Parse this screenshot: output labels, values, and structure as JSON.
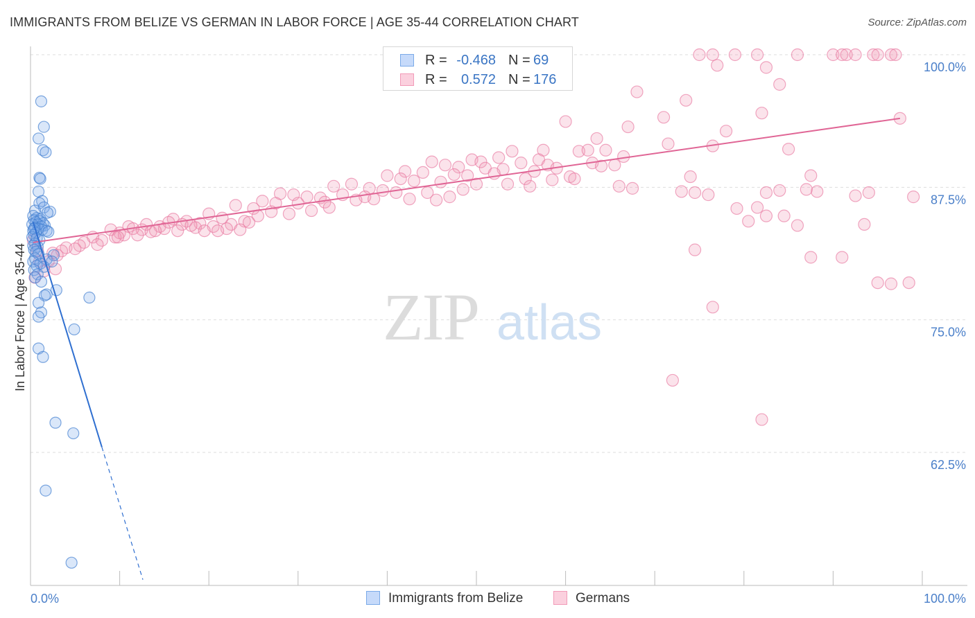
{
  "title": "IMMIGRANTS FROM BELIZE VS GERMAN IN LABOR FORCE | AGE 35-44 CORRELATION CHART",
  "source": "Source: ZipAtlas.com",
  "watermark": {
    "zip": "ZIP",
    "atlas": "atlas"
  },
  "colors": {
    "blue": "#7aaae8",
    "blue_line": "#2f6fd0",
    "pink": "#f29ab8",
    "pink_line": "#e06595",
    "tick_label": "#4a7fc9"
  },
  "legend": {
    "rows": [
      {
        "r_label": "R =",
        "r_value": "-0.468",
        "n_label": "N =",
        "n_value": "69"
      },
      {
        "r_label": "R =",
        "r_value": "0.572",
        "n_label": "N =",
        "n_value": "176"
      }
    ]
  },
  "bottom_legend": {
    "series1": "Immigrants from Belize",
    "series2": "Germans"
  },
  "chart_data": {
    "type": "scatter",
    "ylabel": "In Labor Force | Age 35-44",
    "xlim": [
      0,
      100
    ],
    "ylim": [
      50.5,
      101.5
    ],
    "x_tick_labels": [
      "0.0%",
      "100.0%"
    ],
    "y_ticks": [
      62.5,
      75.0,
      87.5,
      100.0
    ],
    "y_tick_labels": [
      "62.5%",
      "75.0%",
      "87.5%",
      "100.0%"
    ],
    "grid": true,
    "series": [
      {
        "name": "Immigrants from Belize",
        "color": "#7aaae8",
        "trend": {
          "x0": 0.3,
          "y0": 84.2,
          "x1": 8.0,
          "y1": 63.0,
          "dash_to_x": 12.6,
          "dash_to_y": 50.5
        },
        "points": [
          [
            1.2,
            95.6
          ],
          [
            1.5,
            93.2
          ],
          [
            0.9,
            92.1
          ],
          [
            1.4,
            91.0
          ],
          [
            1.7,
            90.8
          ],
          [
            1.0,
            88.4
          ],
          [
            1.1,
            88.3
          ],
          [
            0.9,
            87.1
          ],
          [
            1.3,
            86.2
          ],
          [
            1.0,
            86.0
          ],
          [
            1.5,
            85.6
          ],
          [
            0.5,
            85.3
          ],
          [
            2.2,
            85.2
          ],
          [
            1.9,
            85.1
          ],
          [
            0.3,
            84.8
          ],
          [
            0.7,
            84.6
          ],
          [
            1.1,
            84.5
          ],
          [
            0.4,
            84.4
          ],
          [
            1.0,
            84.3
          ],
          [
            0.6,
            84.2
          ],
          [
            1.4,
            84.1
          ],
          [
            0.8,
            84.0
          ],
          [
            0.2,
            84.0
          ],
          [
            1.6,
            83.9
          ],
          [
            1.2,
            83.8
          ],
          [
            0.5,
            83.7
          ],
          [
            0.9,
            83.6
          ],
          [
            1.3,
            83.5
          ],
          [
            0.3,
            83.4
          ],
          [
            1.8,
            83.4
          ],
          [
            2.0,
            83.3
          ],
          [
            0.6,
            83.2
          ],
          [
            0.4,
            83.0
          ],
          [
            0.2,
            82.8
          ],
          [
            0.7,
            82.7
          ],
          [
            1.0,
            82.5
          ],
          [
            0.5,
            82.2
          ],
          [
            0.3,
            82.0
          ],
          [
            0.8,
            81.9
          ],
          [
            0.4,
            81.6
          ],
          [
            0.6,
            81.4
          ],
          [
            0.9,
            81.2
          ],
          [
            2.6,
            81.1
          ],
          [
            0.5,
            80.8
          ],
          [
            1.8,
            80.7
          ],
          [
            0.3,
            80.5
          ],
          [
            2.4,
            80.5
          ],
          [
            1.1,
            80.3
          ],
          [
            0.7,
            80.1
          ],
          [
            1.5,
            80.0
          ],
          [
            0.4,
            79.7
          ],
          [
            0.8,
            79.3
          ],
          [
            0.5,
            79.0
          ],
          [
            1.2,
            78.6
          ],
          [
            2.9,
            77.8
          ],
          [
            1.8,
            77.4
          ],
          [
            1.6,
            77.3
          ],
          [
            6.6,
            77.1
          ],
          [
            0.9,
            76.6
          ],
          [
            1.2,
            75.7
          ],
          [
            0.9,
            75.3
          ],
          [
            4.9,
            74.1
          ],
          [
            0.9,
            72.3
          ],
          [
            1.4,
            71.5
          ],
          [
            2.8,
            65.3
          ],
          [
            4.8,
            64.3
          ],
          [
            1.7,
            58.9
          ],
          [
            4.6,
            52.1
          ],
          [
            0.4,
            83.6
          ]
        ]
      },
      {
        "name": "Germans",
        "color": "#f29ab8",
        "trend": {
          "x0": 0.3,
          "y0": 82.3,
          "x1": 97.5,
          "y1": 94.0
        },
        "points": [
          [
            75.0,
            100.0
          ],
          [
            76.5,
            100.0
          ],
          [
            79.0,
            100.0
          ],
          [
            81.5,
            100.0
          ],
          [
            86.0,
            100.0
          ],
          [
            90.0,
            100.0
          ],
          [
            91.0,
            100.0
          ],
          [
            91.5,
            100.0
          ],
          [
            92.5,
            100.0
          ],
          [
            94.5,
            100.0
          ],
          [
            95.0,
            100.0
          ],
          [
            96.5,
            100.0
          ],
          [
            97.0,
            100.0
          ],
          [
            77.0,
            99.0
          ],
          [
            82.5,
            98.8
          ],
          [
            84.0,
            97.2
          ],
          [
            68.0,
            96.5
          ],
          [
            73.5,
            95.7
          ],
          [
            82.0,
            94.5
          ],
          [
            71.0,
            94.1
          ],
          [
            60.0,
            93.7
          ],
          [
            67.0,
            93.2
          ],
          [
            78.0,
            92.8
          ],
          [
            97.5,
            94.0
          ],
          [
            63.5,
            92.1
          ],
          [
            71.5,
            91.6
          ],
          [
            76.5,
            91.4
          ],
          [
            85.0,
            91.1
          ],
          [
            57.5,
            91.0
          ],
          [
            61.5,
            90.9
          ],
          [
            62.5,
            91.0
          ],
          [
            64.5,
            91.0
          ],
          [
            54.0,
            90.9
          ],
          [
            52.5,
            90.3
          ],
          [
            57.0,
            90.1
          ],
          [
            66.5,
            90.4
          ],
          [
            49.5,
            90.1
          ],
          [
            50.5,
            89.9
          ],
          [
            55.0,
            89.8
          ],
          [
            58.0,
            89.6
          ],
          [
            63.0,
            89.8
          ],
          [
            64.0,
            89.5
          ],
          [
            65.5,
            89.6
          ],
          [
            45.0,
            89.9
          ],
          [
            46.5,
            89.6
          ],
          [
            48.0,
            89.4
          ],
          [
            51.0,
            89.3
          ],
          [
            53.0,
            89.2
          ],
          [
            56.5,
            89.0
          ],
          [
            59.0,
            89.3
          ],
          [
            42.0,
            89.0
          ],
          [
            44.0,
            88.9
          ],
          [
            47.5,
            88.7
          ],
          [
            49.0,
            88.6
          ],
          [
            52.0,
            88.8
          ],
          [
            55.5,
            88.3
          ],
          [
            58.5,
            88.2
          ],
          [
            60.5,
            88.5
          ],
          [
            40.0,
            88.6
          ],
          [
            41.5,
            88.3
          ],
          [
            43.0,
            88.1
          ],
          [
            46.0,
            88.0
          ],
          [
            50.0,
            87.8
          ],
          [
            53.5,
            87.8
          ],
          [
            56.0,
            87.6
          ],
          [
            61.0,
            88.3
          ],
          [
            74.0,
            88.5
          ],
          [
            34.0,
            87.6
          ],
          [
            36.0,
            87.8
          ],
          [
            38.0,
            87.4
          ],
          [
            39.5,
            87.2
          ],
          [
            41.0,
            87.0
          ],
          [
            44.5,
            87.0
          ],
          [
            47.0,
            86.6
          ],
          [
            48.5,
            87.3
          ],
          [
            66.0,
            87.6
          ],
          [
            67.5,
            87.4
          ],
          [
            73.0,
            87.1
          ],
          [
            74.5,
            87.0
          ],
          [
            76.0,
            86.8
          ],
          [
            28.0,
            86.9
          ],
          [
            29.5,
            86.8
          ],
          [
            31.0,
            86.6
          ],
          [
            32.5,
            86.5
          ],
          [
            35.0,
            86.8
          ],
          [
            37.5,
            86.6
          ],
          [
            38.5,
            86.4
          ],
          [
            42.5,
            86.4
          ],
          [
            45.5,
            86.3
          ],
          [
            26.0,
            86.2
          ],
          [
            27.5,
            86.0
          ],
          [
            30.0,
            86.0
          ],
          [
            33.0,
            86.1
          ],
          [
            36.5,
            86.3
          ],
          [
            23.0,
            85.8
          ],
          [
            25.0,
            85.5
          ],
          [
            27.0,
            85.2
          ],
          [
            29.0,
            85.0
          ],
          [
            31.5,
            85.3
          ],
          [
            33.5,
            85.6
          ],
          [
            20.0,
            85.0
          ],
          [
            21.5,
            84.6
          ],
          [
            24.0,
            84.3
          ],
          [
            25.5,
            84.8
          ],
          [
            16.0,
            84.5
          ],
          [
            17.5,
            84.3
          ],
          [
            19.0,
            84.1
          ],
          [
            22.5,
            84.0
          ],
          [
            24.5,
            84.2
          ],
          [
            13.0,
            84.0
          ],
          [
            14.5,
            83.8
          ],
          [
            15.5,
            84.2
          ],
          [
            17.0,
            84.0
          ],
          [
            18.5,
            83.7
          ],
          [
            20.5,
            83.8
          ],
          [
            22.0,
            83.6
          ],
          [
            11.0,
            83.8
          ],
          [
            12.5,
            83.5
          ],
          [
            13.5,
            83.3
          ],
          [
            15.0,
            83.6
          ],
          [
            16.5,
            83.4
          ],
          [
            18.0,
            83.9
          ],
          [
            21.0,
            83.4
          ],
          [
            23.5,
            83.5
          ],
          [
            9.0,
            83.5
          ],
          [
            10.0,
            83.2
          ],
          [
            11.5,
            83.6
          ],
          [
            12.0,
            83.0
          ],
          [
            14.0,
            83.4
          ],
          [
            19.5,
            83.4
          ],
          [
            7.0,
            82.8
          ],
          [
            8.0,
            82.5
          ],
          [
            9.5,
            82.8
          ],
          [
            10.5,
            83.0
          ],
          [
            6.0,
            82.3
          ],
          [
            5.5,
            82.0
          ],
          [
            7.5,
            82.1
          ],
          [
            4.0,
            81.8
          ],
          [
            3.5,
            81.5
          ],
          [
            5.0,
            81.7
          ],
          [
            2.5,
            81.3
          ],
          [
            3.0,
            81.1
          ],
          [
            2.0,
            80.5
          ],
          [
            2.8,
            79.8
          ],
          [
            1.5,
            79.6
          ],
          [
            0.5,
            79.0
          ],
          [
            1.0,
            80.5
          ],
          [
            0.8,
            81.5
          ],
          [
            0.3,
            82.5
          ],
          [
            9.8,
            82.8
          ],
          [
            87.5,
            88.6
          ],
          [
            88.2,
            87.1
          ],
          [
            82.5,
            87.0
          ],
          [
            84.0,
            87.2
          ],
          [
            87.0,
            87.3
          ],
          [
            99.0,
            86.6
          ],
          [
            92.5,
            86.7
          ],
          [
            94.0,
            87.0
          ],
          [
            80.5,
            84.3
          ],
          [
            82.5,
            84.8
          ],
          [
            93.5,
            84.0
          ],
          [
            79.2,
            85.5
          ],
          [
            86.0,
            83.9
          ],
          [
            87.5,
            80.9
          ],
          [
            91.0,
            80.9
          ],
          [
            95.0,
            78.5
          ],
          [
            96.5,
            78.4
          ],
          [
            98.5,
            78.5
          ],
          [
            76.5,
            76.2
          ],
          [
            74.5,
            81.6
          ],
          [
            72.0,
            69.3
          ],
          [
            82.0,
            65.6
          ],
          [
            84.5,
            84.8
          ],
          [
            81.5,
            85.6
          ]
        ]
      }
    ]
  }
}
